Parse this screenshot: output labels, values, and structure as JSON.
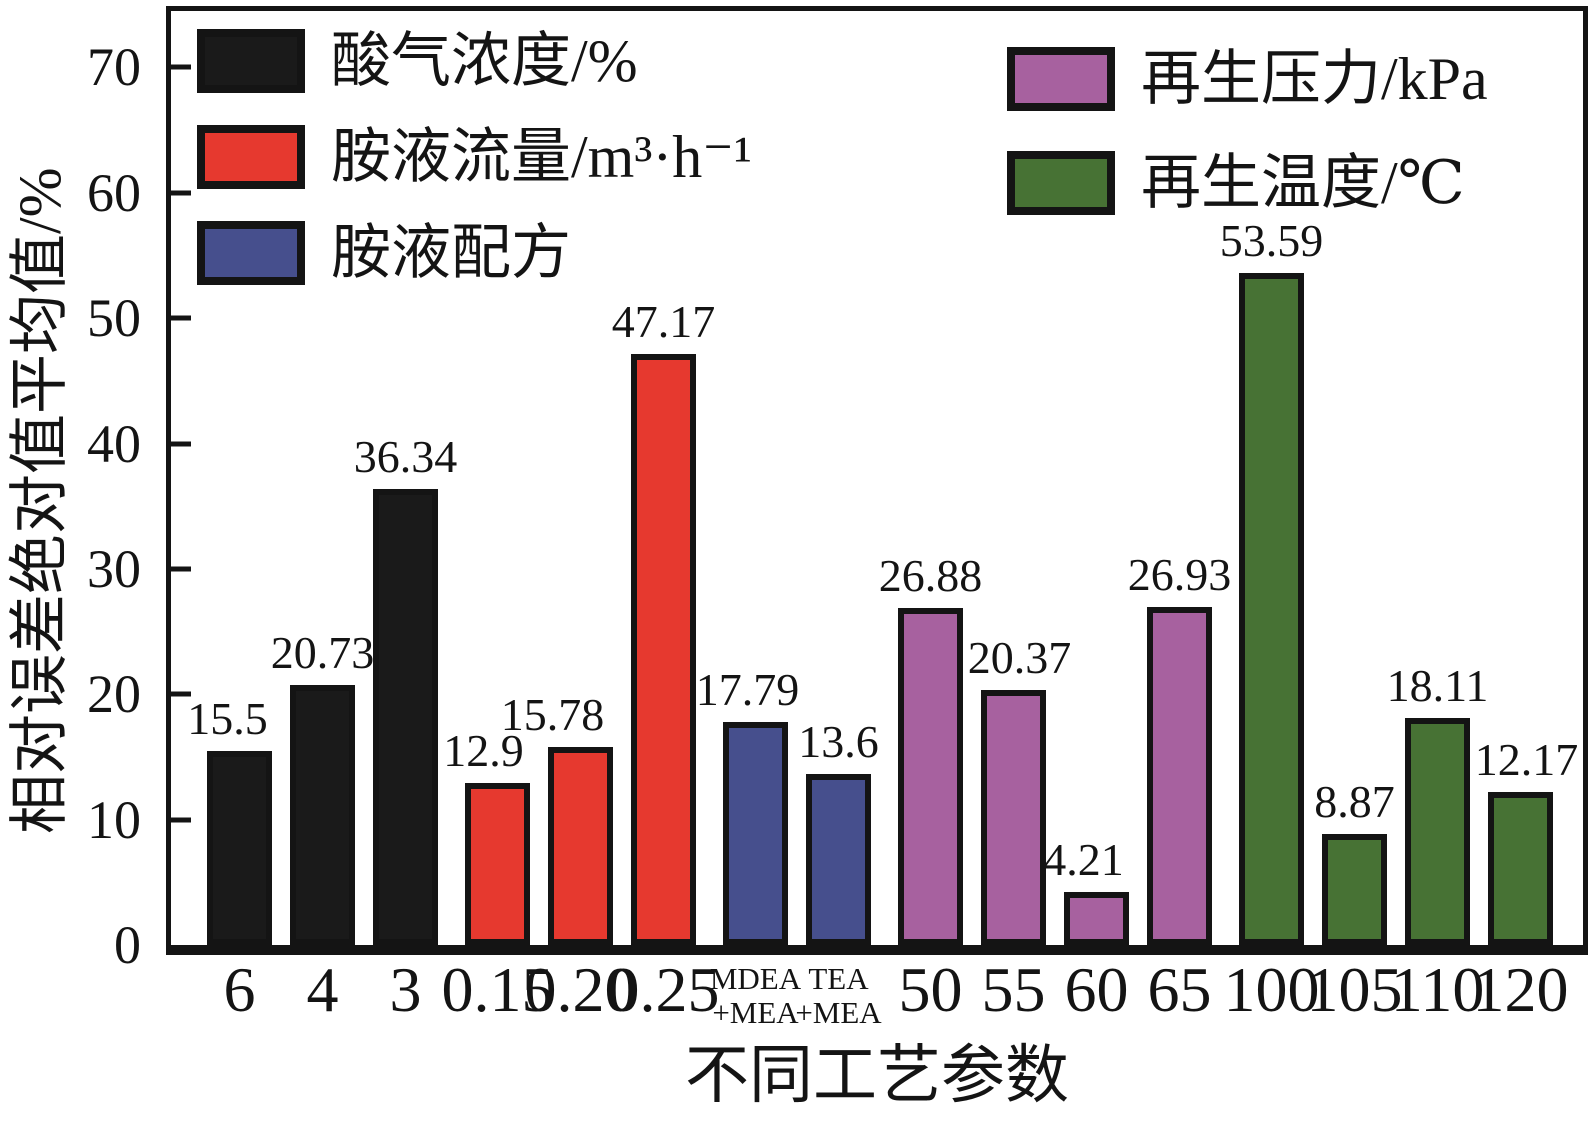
{
  "chart_data": {
    "type": "bar",
    "title": "",
    "xlabel": "不同工艺参数",
    "ylabel": "相对误差绝对值平均值/%",
    "ylim": [
      0,
      75
    ],
    "yticks": [
      0,
      10,
      20,
      30,
      40,
      50,
      60,
      70
    ],
    "grid": false,
    "frame": "full box, ticks inside left axis only",
    "series": [
      {
        "label": "酸气浓度/%",
        "color": "#1a1a1a",
        "legend_placement": "left"
      },
      {
        "label": "胺液流量/m³·h⁻¹",
        "color": "#e6392f",
        "legend_placement": "left"
      },
      {
        "label": "胺液配方",
        "color": "#464f8d",
        "legend_placement": "left"
      },
      {
        "label": "再生压力/kPa",
        "color": "#a7619f",
        "legend_placement": "right"
      },
      {
        "label": "再生温度/℃",
        "color": "#477234",
        "legend_placement": "right"
      }
    ],
    "bars": [
      {
        "category": "6",
        "value": 15.5,
        "series": 0
      },
      {
        "category": "4",
        "value": 20.73,
        "series": 0
      },
      {
        "category": "3",
        "value": 36.34,
        "series": 0
      },
      {
        "category": "0.15",
        "value": 12.9,
        "series": 1
      },
      {
        "category": "0.20",
        "value": 15.78,
        "series": 1
      },
      {
        "category": "0.25",
        "value": 47.17,
        "series": 1
      },
      {
        "category": "MDEA",
        "category_line2": "+MEA",
        "value": 17.79,
        "series": 2
      },
      {
        "category": "TEA",
        "category_line2": "+MEA",
        "value": 13.6,
        "series": 2
      },
      {
        "category": "50",
        "value": 26.88,
        "series": 3
      },
      {
        "category": "55",
        "value": 20.37,
        "series": 3
      },
      {
        "category": "60",
        "value": 4.21,
        "series": 3
      },
      {
        "category": "65",
        "value": 26.93,
        "series": 3
      },
      {
        "category": "100",
        "value": 53.59,
        "series": 4
      },
      {
        "category": "105",
        "value": 8.87,
        "series": 4
      },
      {
        "category": "110",
        "value": 18.11,
        "series": 4
      },
      {
        "category": "120",
        "value": 12.17,
        "series": 4
      }
    ]
  }
}
